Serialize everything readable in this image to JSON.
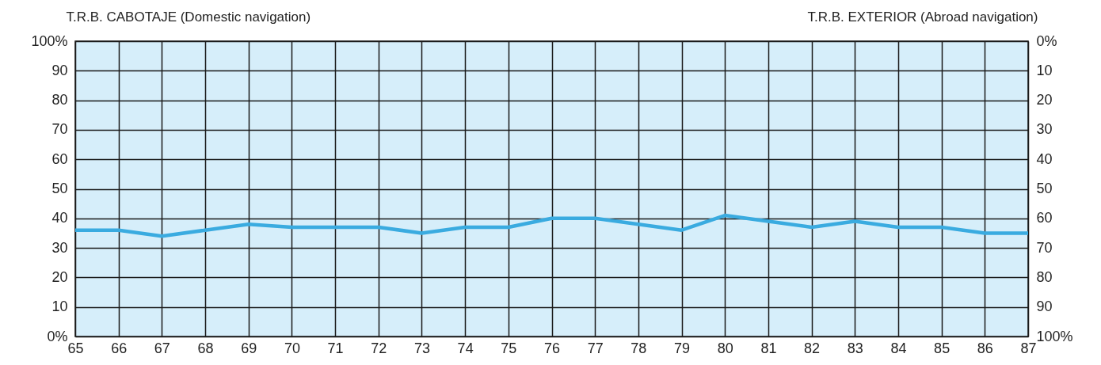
{
  "chart_data": {
    "type": "line",
    "ylabel": "T.R.B. CABOTAJE (Domestic navigation)",
    "y2label": "T.R.B. EXTERIOR (Abroad navigation)",
    "x": [
      65,
      66,
      67,
      68,
      69,
      70,
      71,
      72,
      73,
      74,
      75,
      76,
      77,
      78,
      79,
      80,
      81,
      82,
      83,
      84,
      85,
      86,
      87
    ],
    "xlim": [
      65,
      87
    ],
    "xticks": [
      65,
      66,
      67,
      68,
      69,
      70,
      71,
      72,
      73,
      74,
      75,
      76,
      77,
      78,
      79,
      80,
      81,
      82,
      83,
      84,
      85,
      86,
      87
    ],
    "ylim": [
      0,
      100
    ],
    "yticks": [
      {
        "value": 0,
        "label": "0%"
      },
      10,
      20,
      30,
      40,
      50,
      60,
      70,
      80,
      90,
      {
        "value": 100,
        "label": "100%"
      }
    ],
    "y2lim": [
      100,
      0
    ],
    "y2ticks": [
      {
        "value": 0,
        "label": "0%"
      },
      10,
      20,
      30,
      40,
      50,
      60,
      70,
      80,
      90,
      {
        "value": 100,
        "label": "100%"
      }
    ],
    "series": [
      {
        "color": "#3aabe0",
        "values": [
          36,
          36,
          34,
          36,
          38,
          37,
          37,
          37,
          35,
          37,
          37,
          40,
          40,
          38,
          36,
          41,
          39,
          37,
          39,
          37,
          37,
          35,
          35
        ]
      }
    ],
    "grid": true
  }
}
